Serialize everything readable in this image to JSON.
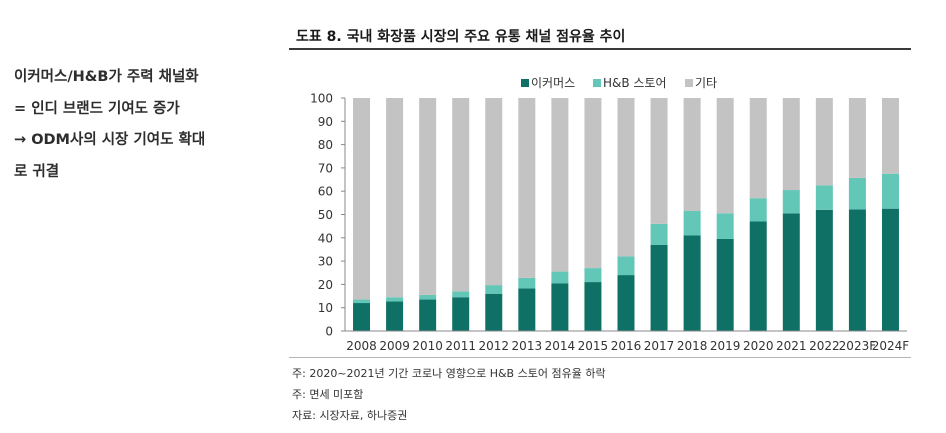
{
  "side_note": {
    "lines": [
      "이커머스/H&B가 주력 채널화",
      "= 인디 브랜드 기여도 증가",
      "→ ODM사의 시장 기여도 확대",
      "로 귀결"
    ]
  },
  "figure": {
    "title": "도표 8. 국내 화장품 시장의 주요 유통 채널 점유율 추이"
  },
  "footnotes": [
    "주: 2020~2021년 기간 코로나 영향으로 H&B 스토어 점유율 하락",
    "주: 면세 미포함",
    "자료: 시장자료, 하나증권"
  ],
  "chart_data": {
    "type": "bar",
    "stacked": true,
    "categories": [
      "2008",
      "2009",
      "2010",
      "2011",
      "2012",
      "2013",
      "2014",
      "2015",
      "2016",
      "2017",
      "2018",
      "2019",
      "2020",
      "2021",
      "2022",
      "2023F",
      "2024F"
    ],
    "series": [
      {
        "name": "이커머스",
        "color": "#0f7166",
        "values": [
          12.0,
          12.7,
          13.5,
          14.5,
          16.0,
          18.3,
          20.5,
          21.0,
          24.0,
          37.0,
          41.0,
          39.5,
          47.0,
          50.5,
          52.0,
          52.2,
          52.5
        ]
      },
      {
        "name": "H&B 스토어",
        "color": "#63c7b8",
        "values": [
          1.5,
          1.8,
          2.0,
          2.5,
          3.7,
          4.5,
          5.0,
          6.0,
          8.0,
          9.0,
          10.5,
          11.0,
          10.0,
          10.0,
          10.5,
          13.5,
          15.0
        ]
      },
      {
        "name": "기타",
        "color": "#c3c3c3",
        "values": [
          86.5,
          85.5,
          84.5,
          83.0,
          80.3,
          77.2,
          74.5,
          73.0,
          68.0,
          54.0,
          48.5,
          49.5,
          43.0,
          39.5,
          37.5,
          34.3,
          32.5
        ]
      }
    ],
    "ylim": [
      0,
      100
    ],
    "yticks": [
      0,
      10,
      20,
      30,
      40,
      50,
      60,
      70,
      80,
      90,
      100
    ],
    "legend_position": "top-center",
    "grid": false
  }
}
